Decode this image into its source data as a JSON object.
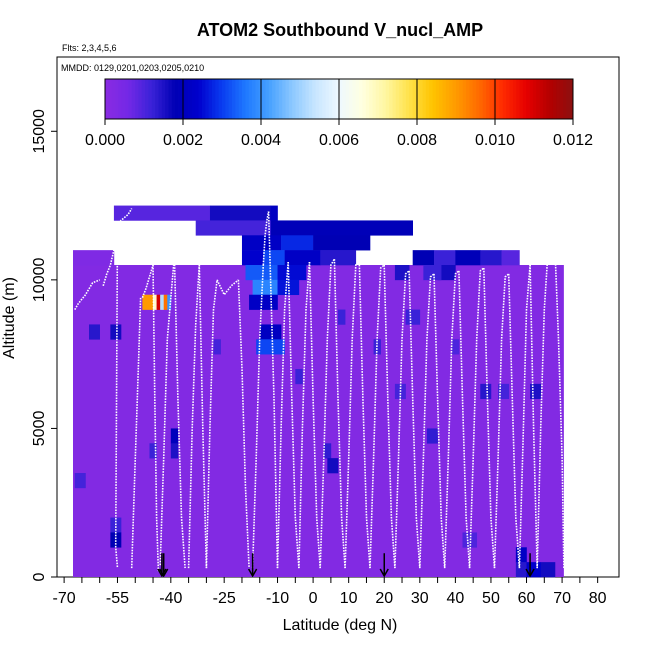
{
  "chart_data": {
    "type": "heatmap",
    "title": "ATOM2 Southbound V_nucl_AMP",
    "subtitle_flights": "Flts: 2,3,4,5,6",
    "subtitle_dates": "MMDD: 0129,0201,0203,0205,0210",
    "xlabel": "Latitude (deg N)",
    "ylabel": "Altitude (m)",
    "xlim": [
      -72,
      86
    ],
    "ylim": [
      0,
      17500
    ],
    "x_ticks": [
      -70,
      -65,
      -60,
      -55,
      -50,
      -45,
      -40,
      -35,
      -30,
      -25,
      -20,
      -15,
      -10,
      -5,
      0,
      5,
      10,
      15,
      20,
      25,
      30,
      35,
      40,
      45,
      50,
      55,
      60,
      65,
      70,
      75,
      80
    ],
    "x_tick_labels": [
      "-70",
      "-55",
      "-40",
      "-25",
      "-10",
      "0",
      "10",
      "20",
      "30",
      "40",
      "50",
      "60",
      "70",
      "80"
    ],
    "x_tick_label_values": [
      -70,
      -55,
      -40,
      -25,
      -10,
      0,
      10,
      20,
      30,
      40,
      50,
      60,
      70,
      80
    ],
    "y_ticks": [
      0,
      5000,
      10000,
      15000
    ],
    "y_tick_labels": [
      "0",
      "5000",
      "10000",
      "15000"
    ],
    "colorbar": {
      "range": [
        0,
        0.012
      ],
      "tick_values": [
        0,
        0.002,
        0.004,
        0.006,
        0.008,
        0.01,
        0.012
      ],
      "tick_labels": [
        "0.000",
        "0.002",
        "0.004",
        "0.006",
        "0.008",
        "0.010",
        "0.012"
      ],
      "colors": [
        "#8a2be2",
        "#7328e6",
        "#3a22d8",
        "#0000b4",
        "#0000cd",
        "#0a3cf0",
        "#1e78ff",
        "#46a0ff",
        "#8cc8ff",
        "#c8e6ff",
        "#eef8ff",
        "#ffffe0",
        "#fff6a0",
        "#ffe24a",
        "#ffc400",
        "#ff9a00",
        "#ff6a00",
        "#ff2a00",
        "#e60000",
        "#b40000",
        "#8b1010"
      ]
    },
    "background_region": {
      "lat": [
        -67.5,
        70.5
      ],
      "alt": [
        0,
        10500
      ],
      "value": 0.0002
    },
    "cells": [
      {
        "lat": [
          -67.5,
          -56
        ],
        "alt": [
          10500,
          11000
        ],
        "value": 0.0003
      },
      {
        "lat": [
          -56,
          -29
        ],
        "alt": [
          12000,
          12500
        ],
        "value": 0.0009
      },
      {
        "lat": [
          -29,
          -12
        ],
        "alt": [
          12000,
          12500
        ],
        "value": 0.0016
      },
      {
        "lat": [
          -12,
          -10
        ],
        "alt": [
          12000,
          12500
        ],
        "value": 0.0021
      },
      {
        "lat": [
          -12,
          28
        ],
        "alt": [
          11500,
          12000
        ],
        "value": 0.0019
      },
      {
        "lat": [
          -33,
          -12
        ],
        "alt": [
          11500,
          12000
        ],
        "value": 0.0011
      },
      {
        "lat": [
          -20,
          -9
        ],
        "alt": [
          11000,
          11500
        ],
        "value": 0.0022
      },
      {
        "lat": [
          -9,
          0
        ],
        "alt": [
          11000,
          11500
        ],
        "value": 0.0028
      },
      {
        "lat": [
          0,
          16
        ],
        "alt": [
          11000,
          11500
        ],
        "value": 0.0018
      },
      {
        "lat": [
          -20,
          -14
        ],
        "alt": [
          10500,
          11000
        ],
        "value": 0.0024
      },
      {
        "lat": [
          -14,
          -8
        ],
        "alt": [
          10500,
          11000
        ],
        "value": 0.0031
      },
      {
        "lat": [
          -8,
          2
        ],
        "alt": [
          10500,
          11000
        ],
        "value": 0.0022
      },
      {
        "lat": [
          2,
          12
        ],
        "alt": [
          10500,
          11000
        ],
        "value": 0.0014
      },
      {
        "lat": [
          -19,
          -10
        ],
        "alt": [
          10000,
          10500
        ],
        "value": 0.0033
      },
      {
        "lat": [
          -10,
          -2
        ],
        "alt": [
          10000,
          10500
        ],
        "value": 0.0025
      },
      {
        "lat": [
          -17,
          -10
        ],
        "alt": [
          9500,
          10000
        ],
        "value": 0.0038
      },
      {
        "lat": [
          -10,
          -4
        ],
        "alt": [
          9500,
          10000
        ],
        "value": 0.0026
      },
      {
        "lat": [
          -18,
          -10
        ],
        "alt": [
          9000,
          9500
        ],
        "value": 0.0022
      },
      {
        "lat": [
          -15,
          -9
        ],
        "alt": [
          8000,
          8500
        ],
        "value": 0.0021
      },
      {
        "lat": [
          -16,
          -8
        ],
        "alt": [
          7500,
          8000
        ],
        "value": 0.0031
      },
      {
        "lat": [
          28,
          34
        ],
        "alt": [
          10500,
          11000
        ],
        "value": 0.0018
      },
      {
        "lat": [
          34,
          40
        ],
        "alt": [
          10500,
          11000
        ],
        "value": 0.0012
      },
      {
        "lat": [
          40,
          47
        ],
        "alt": [
          10500,
          11000
        ],
        "value": 0.0019
      },
      {
        "lat": [
          47,
          53
        ],
        "alt": [
          10500,
          11000
        ],
        "value": 0.0014
      },
      {
        "lat": [
          53,
          58
        ],
        "alt": [
          10500,
          11000
        ],
        "value": 0.0009
      },
      {
        "lat": [
          35,
          40
        ],
        "alt": [
          10000,
          10500
        ],
        "value": 0.0016
      },
      {
        "lat": [
          23,
          27
        ],
        "alt": [
          10000,
          10500
        ],
        "value": 0.0015
      },
      {
        "lat": [
          31,
          36
        ],
        "alt": [
          10000,
          10500
        ],
        "value": 0.0012
      },
      {
        "lat": [
          -48,
          -45
        ],
        "alt": [
          9000,
          9500
        ],
        "value": 0.009
      },
      {
        "lat": [
          -45,
          -44
        ],
        "alt": [
          9000,
          9500
        ],
        "value": 0.0068
      },
      {
        "lat": [
          -44,
          -43
        ],
        "alt": [
          9000,
          9500
        ],
        "value": 0.011
      },
      {
        "lat": [
          -43,
          -42
        ],
        "alt": [
          9000,
          9500
        ],
        "value": 0.0052
      },
      {
        "lat": [
          -42,
          -41
        ],
        "alt": [
          9000,
          9500
        ],
        "value": 0.0095
      },
      {
        "lat": [
          -41,
          -40
        ],
        "alt": [
          9000,
          9500
        ],
        "value": 0.004
      },
      {
        "lat": [
          -57,
          -54
        ],
        "alt": [
          8000,
          8500
        ],
        "value": 0.0016
      },
      {
        "lat": [
          -57,
          -54
        ],
        "alt": [
          1500,
          2000
        ],
        "value": 0.0012
      },
      {
        "lat": [
          -57,
          -54
        ],
        "alt": [
          1000,
          1500
        ],
        "value": 0.0018
      },
      {
        "lat": [
          -67,
          -64
        ],
        "alt": [
          3000,
          3500
        ],
        "value": 0.0011
      },
      {
        "lat": [
          -63,
          -60
        ],
        "alt": [
          8000,
          8500
        ],
        "value": 0.0014
      },
      {
        "lat": [
          -40,
          -38
        ],
        "alt": [
          4500,
          5000
        ],
        "value": 0.002
      },
      {
        "lat": [
          -40,
          -38
        ],
        "alt": [
          4000,
          4500
        ],
        "value": 0.0015
      },
      {
        "lat": [
          -46,
          -44
        ],
        "alt": [
          4000,
          4500
        ],
        "value": 0.0012
      },
      {
        "lat": [
          -28,
          -26
        ],
        "alt": [
          7500,
          8000
        ],
        "value": 0.0011
      },
      {
        "lat": [
          -5,
          -3
        ],
        "alt": [
          6500,
          7000
        ],
        "value": 0.0012
      },
      {
        "lat": [
          3,
          5
        ],
        "alt": [
          4000,
          4500
        ],
        "value": 0.0013
      },
      {
        "lat": [
          4,
          7
        ],
        "alt": [
          3500,
          4000
        ],
        "value": 0.0016
      },
      {
        "lat": [
          7,
          9
        ],
        "alt": [
          8500,
          9000
        ],
        "value": 0.0012
      },
      {
        "lat": [
          17,
          19
        ],
        "alt": [
          7500,
          8000
        ],
        "value": 0.0012
      },
      {
        "lat": [
          23,
          26
        ],
        "alt": [
          6000,
          6500
        ],
        "value": 0.0011
      },
      {
        "lat": [
          32,
          35
        ],
        "alt": [
          4500,
          5000
        ],
        "value": 0.0013
      },
      {
        "lat": [
          47,
          50
        ],
        "alt": [
          6000,
          6500
        ],
        "value": 0.0014
      },
      {
        "lat": [
          52,
          55
        ],
        "alt": [
          6000,
          6500
        ],
        "value": 0.0011
      },
      {
        "lat": [
          61,
          64
        ],
        "alt": [
          6000,
          6500
        ],
        "value": 0.0015
      },
      {
        "lat": [
          39,
          41
        ],
        "alt": [
          7500,
          8000
        ],
        "value": 0.001
      },
      {
        "lat": [
          26,
          30
        ],
        "alt": [
          8500,
          9000
        ],
        "value": 0.0012
      },
      {
        "lat": [
          42,
          46
        ],
        "alt": [
          1000,
          1500
        ],
        "value": 0.001
      },
      {
        "lat": [
          57,
          60
        ],
        "alt": [
          500,
          1000
        ],
        "value": 0.0022
      },
      {
        "lat": [
          57,
          60
        ],
        "alt": [
          0,
          500
        ],
        "value": 0.0014
      },
      {
        "lat": [
          60,
          64
        ],
        "alt": [
          0,
          500
        ],
        "value": 0.0024
      },
      {
        "lat": [
          64,
          68
        ],
        "alt": [
          0,
          500
        ],
        "value": 0.0016
      }
    ],
    "flight_profiles": [
      {
        "lat": [
          -67,
          -66,
          -64,
          -62,
          -60
        ],
        "alt": [
          9000,
          9200,
          9500,
          9900,
          10000
        ]
      },
      {
        "lat": [
          -59,
          -58,
          -57,
          -56,
          -55,
          -55.5,
          -55
        ],
        "alt": [
          9800,
          10200,
          10500,
          11000,
          11800,
          1000,
          300
        ]
      },
      {
        "lat": [
          -55,
          -54,
          -52,
          -51
        ],
        "alt": [
          11800,
          12000,
          12200,
          12400
        ]
      },
      {
        "lat": [
          -51,
          -50,
          -49,
          -48.5
        ],
        "alt": [
          300,
          4000,
          7500,
          9400
        ]
      },
      {
        "lat": [
          -48,
          -47,
          -46,
          -45.5,
          -45
        ],
        "alt": [
          9400,
          9700,
          10100,
          10300,
          10500
        ]
      },
      {
        "lat": [
          -45,
          -44.5,
          -44,
          -43.5
        ],
        "alt": [
          10500,
          6000,
          2000,
          200
        ]
      },
      {
        "lat": [
          -43,
          -42,
          -41,
          -39
        ],
        "alt": [
          400,
          4000,
          8000,
          10800
        ]
      },
      {
        "lat": [
          -39,
          -38,
          -37,
          -36
        ],
        "alt": [
          10800,
          6000,
          2000,
          300
        ]
      },
      {
        "lat": [
          -35,
          -34,
          -33,
          -32
        ],
        "alt": [
          300,
          5000,
          8500,
          10500
        ]
      },
      {
        "lat": [
          -32,
          -31,
          -30
        ],
        "alt": [
          10500,
          5000,
          300
        ]
      },
      {
        "lat": [
          -30,
          -29,
          -28,
          -27
        ],
        "alt": [
          300,
          5000,
          9000,
          10000
        ]
      },
      {
        "lat": [
          -27,
          -25,
          -23,
          -21
        ],
        "alt": [
          10000,
          9500,
          9800,
          10000
        ]
      },
      {
        "lat": [
          -21,
          -20,
          -19,
          -18
        ],
        "alt": [
          10000,
          7000,
          3000,
          300
        ]
      },
      {
        "lat": [
          -17,
          -16,
          -15,
          -14
        ],
        "alt": [
          300,
          4000,
          8000,
          10500
        ]
      },
      {
        "lat": [
          -14,
          -13.5,
          -13,
          -12.5
        ],
        "alt": [
          10500,
          11500,
          12000,
          12300
        ]
      },
      {
        "lat": [
          -12.5,
          -11,
          -10
        ],
        "alt": [
          12300,
          6000,
          300
        ]
      },
      {
        "lat": [
          -10,
          -9,
          -8,
          -7
        ],
        "alt": [
          300,
          5000,
          9000,
          10600
        ]
      },
      {
        "lat": [
          -7,
          -6,
          -5,
          -4
        ],
        "alt": [
          10600,
          6000,
          2000,
          300
        ]
      },
      {
        "lat": [
          -4,
          -3,
          -2,
          -1
        ],
        "alt": [
          300,
          5000,
          9000,
          10600
        ]
      },
      {
        "lat": [
          -1,
          0,
          1,
          2
        ],
        "alt": [
          10600,
          6000,
          2000,
          300
        ]
      },
      {
        "lat": [
          2,
          3,
          4,
          5,
          6
        ],
        "alt": [
          300,
          4000,
          8000,
          10500,
          10700
        ]
      },
      {
        "lat": [
          6,
          7,
          8,
          9
        ],
        "alt": [
          10700,
          6000,
          2000,
          300
        ]
      },
      {
        "lat": [
          9,
          10,
          11,
          12,
          13
        ],
        "alt": [
          300,
          4000,
          8000,
          10500,
          10600
        ]
      },
      {
        "lat": [
          13,
          14,
          15,
          16
        ],
        "alt": [
          10600,
          6000,
          2000,
          300
        ]
      },
      {
        "lat": [
          16,
          17,
          18,
          19,
          20
        ],
        "alt": [
          300,
          4000,
          8000,
          10400,
          10500
        ]
      },
      {
        "lat": [
          20,
          21,
          22,
          23
        ],
        "alt": [
          10500,
          6000,
          2000,
          300
        ]
      },
      {
        "lat": [
          23,
          24,
          25,
          26,
          27
        ],
        "alt": [
          300,
          4000,
          8000,
          10200,
          10300
        ]
      },
      {
        "lat": [
          27,
          28,
          29,
          30
        ],
        "alt": [
          10300,
          6000,
          2000,
          300
        ]
      },
      {
        "lat": [
          30,
          31,
          32,
          33,
          34
        ],
        "alt": [
          300,
          4000,
          8000,
          10100,
          10200
        ]
      },
      {
        "lat": [
          34,
          35,
          36,
          37
        ],
        "alt": [
          10200,
          6000,
          2000,
          300
        ]
      },
      {
        "lat": [
          37,
          38,
          39,
          40,
          41
        ],
        "alt": [
          300,
          4000,
          8000,
          10200,
          10300
        ]
      },
      {
        "lat": [
          41,
          42,
          43,
          44
        ],
        "alt": [
          10300,
          6000,
          2000,
          300
        ]
      },
      {
        "lat": [
          44,
          45,
          46,
          47,
          48
        ],
        "alt": [
          300,
          4000,
          8000,
          10300,
          10400
        ]
      },
      {
        "lat": [
          48,
          49,
          50,
          51
        ],
        "alt": [
          10400,
          6000,
          2000,
          300
        ]
      },
      {
        "lat": [
          51,
          52,
          53,
          54,
          55
        ],
        "alt": [
          300,
          4000,
          8000,
          10100,
          10200
        ]
      },
      {
        "lat": [
          55,
          56,
          57,
          58
        ],
        "alt": [
          10200,
          6000,
          2000,
          300
        ]
      },
      {
        "lat": [
          58,
          59,
          60,
          61
        ],
        "alt": [
          300,
          4500,
          9000,
          10500
        ]
      },
      {
        "lat": [
          61,
          62,
          63
        ],
        "alt": [
          10500,
          5000,
          300
        ]
      },
      {
        "lat": [
          63,
          64,
          65,
          66,
          68
        ],
        "alt": [
          300,
          5000,
          9000,
          10900,
          11000
        ]
      },
      {
        "lat": [
          68,
          69,
          70,
          70.5
        ],
        "alt": [
          11000,
          8000,
          4000,
          300
        ]
      }
    ],
    "arrows": [
      {
        "lat": -42,
        "alt": 800
      },
      {
        "lat": -42.5,
        "alt": 800
      },
      {
        "lat": -17,
        "alt": 800
      },
      {
        "lat": 20,
        "alt": 800
      },
      {
        "lat": 61,
        "alt": 800
      }
    ]
  }
}
